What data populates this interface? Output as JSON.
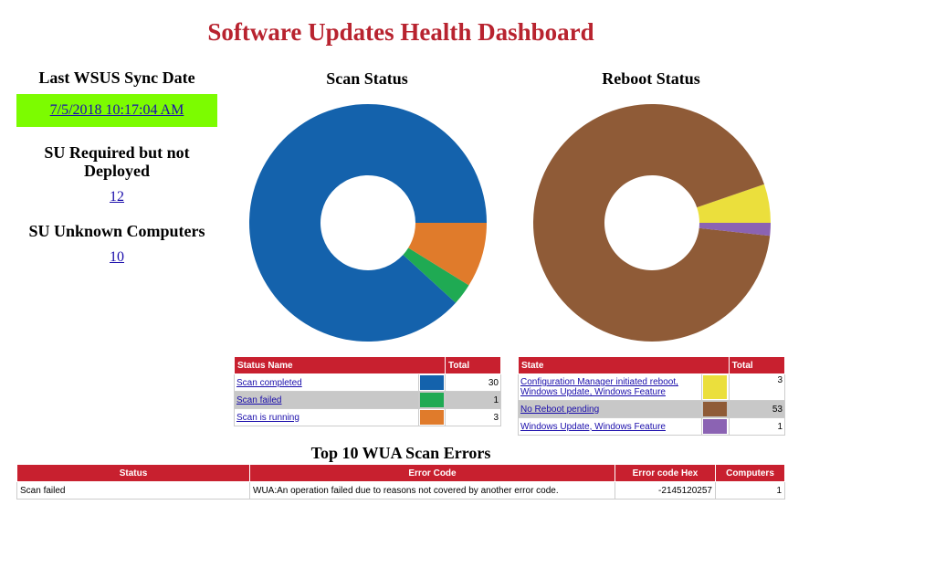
{
  "title": "Software Updates Health Dashboard",
  "left": {
    "sync_heading": "Last WSUS Sync Date",
    "sync_value": "7/5/2018 10:17:04 AM",
    "su_required_heading": "SU Required but not Deployed",
    "su_required_value": "12",
    "su_unknown_heading": "SU Unknown Computers",
    "su_unknown_value": "10"
  },
  "colors": {
    "accent": "#b8232f",
    "header_bg": "#c8202f",
    "sync_bg": "#7CFC00",
    "link": "#1a0dab"
  },
  "chart_data": [
    {
      "type": "pie",
      "title": "Scan Status",
      "categories": [
        "Scan completed",
        "Scan failed",
        "Scan is running"
      ],
      "values": [
        30,
        1,
        3
      ],
      "colors": [
        "#1462ac",
        "#1faa53",
        "#e07b2b"
      ]
    },
    {
      "type": "pie",
      "title": "Reboot Status",
      "categories": [
        "Configuration Manager initiated reboot, Windows Update, Windows Feature",
        "No Reboot pending",
        "Windows Update, Windows Feature"
      ],
      "values": [
        3,
        53,
        1
      ],
      "colors": [
        "#ebdf3c",
        "#8f5b37",
        "#8b63b3"
      ]
    }
  ],
  "scan_table": {
    "col1": "Status Name",
    "col2": "Total",
    "rows": [
      {
        "name": "Scan completed",
        "total": "30"
      },
      {
        "name": "Scan failed",
        "total": "1"
      },
      {
        "name": "Scan is running",
        "total": "3"
      }
    ]
  },
  "reboot_table": {
    "col1": "State",
    "col2": "Total",
    "rows": [
      {
        "name": "Configuration Manager initiated reboot, Windows Update, Windows Feature",
        "total": "3"
      },
      {
        "name": "No Reboot pending",
        "total": "53"
      },
      {
        "name": "Windows Update, Windows Feature",
        "total": "1"
      }
    ]
  },
  "errors": {
    "title": "Top 10 WUA Scan Errors",
    "headers": [
      "Status",
      "Error Code",
      "Error code Hex",
      "Computers"
    ],
    "rows": [
      {
        "status": "Scan failed",
        "code": "WUA:An operation failed due to reasons not covered by another error code.",
        "hex": "-2145120257",
        "computers": "1"
      }
    ]
  }
}
